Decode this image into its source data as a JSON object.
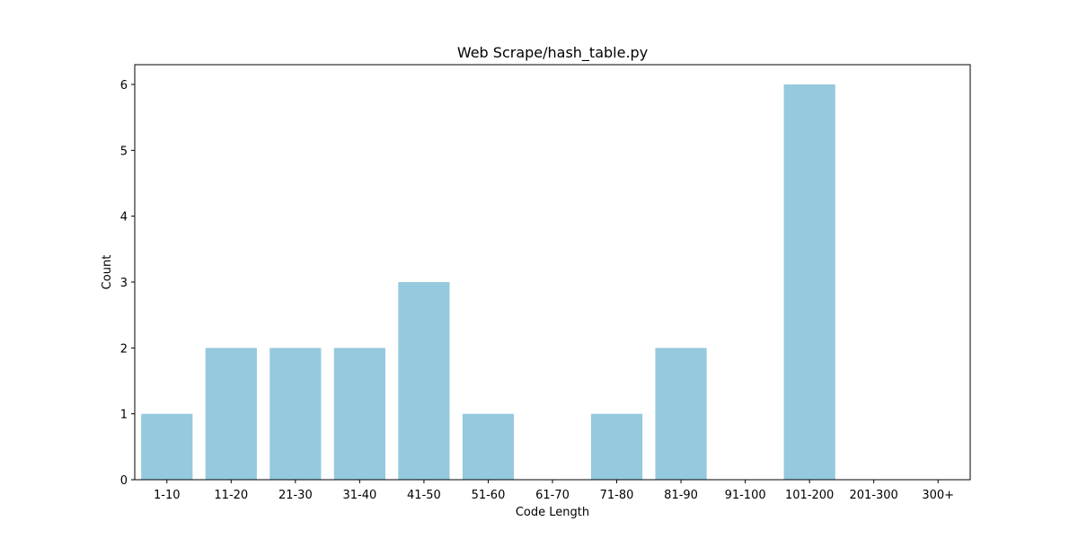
{
  "chart_data": {
    "type": "bar",
    "title": "Web Scrape/hash_table.py",
    "xlabel": "Code Length",
    "ylabel": "Count",
    "categories": [
      "1-10",
      "11-20",
      "21-30",
      "31-40",
      "41-50",
      "51-60",
      "61-70",
      "71-80",
      "81-90",
      "91-100",
      "101-200",
      "201-300",
      "300+"
    ],
    "values": [
      1,
      2,
      2,
      2,
      3,
      1,
      0,
      1,
      2,
      0,
      6,
      0,
      0
    ],
    "ylim": [
      0,
      6.3
    ],
    "yticks": [
      "0",
      "1",
      "2",
      "3",
      "4",
      "5",
      "6"
    ],
    "grid": false,
    "legend": "none",
    "bar_color": "#95c9de"
  }
}
